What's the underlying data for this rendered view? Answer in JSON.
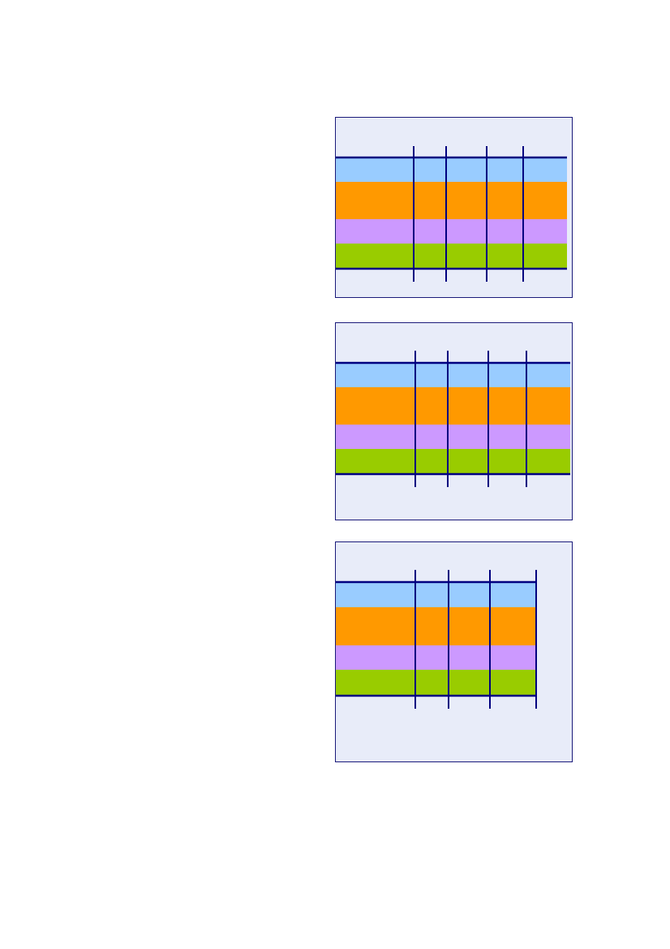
{
  "colors": {
    "background": "#e8ecf9",
    "frame": "#1a1a7a",
    "rule": "#000080",
    "bands": [
      "#99ccff",
      "#ff9900",
      "#cc99ff",
      "#99cc00"
    ]
  },
  "panels": [
    {
      "name": "diagram-panel-1",
      "band_count": 4,
      "column_divider_count": 4
    },
    {
      "name": "diagram-panel-2",
      "band_count": 4,
      "column_divider_count": 4
    },
    {
      "name": "diagram-panel-3",
      "band_count": 4,
      "column_divider_count": 4
    }
  ]
}
